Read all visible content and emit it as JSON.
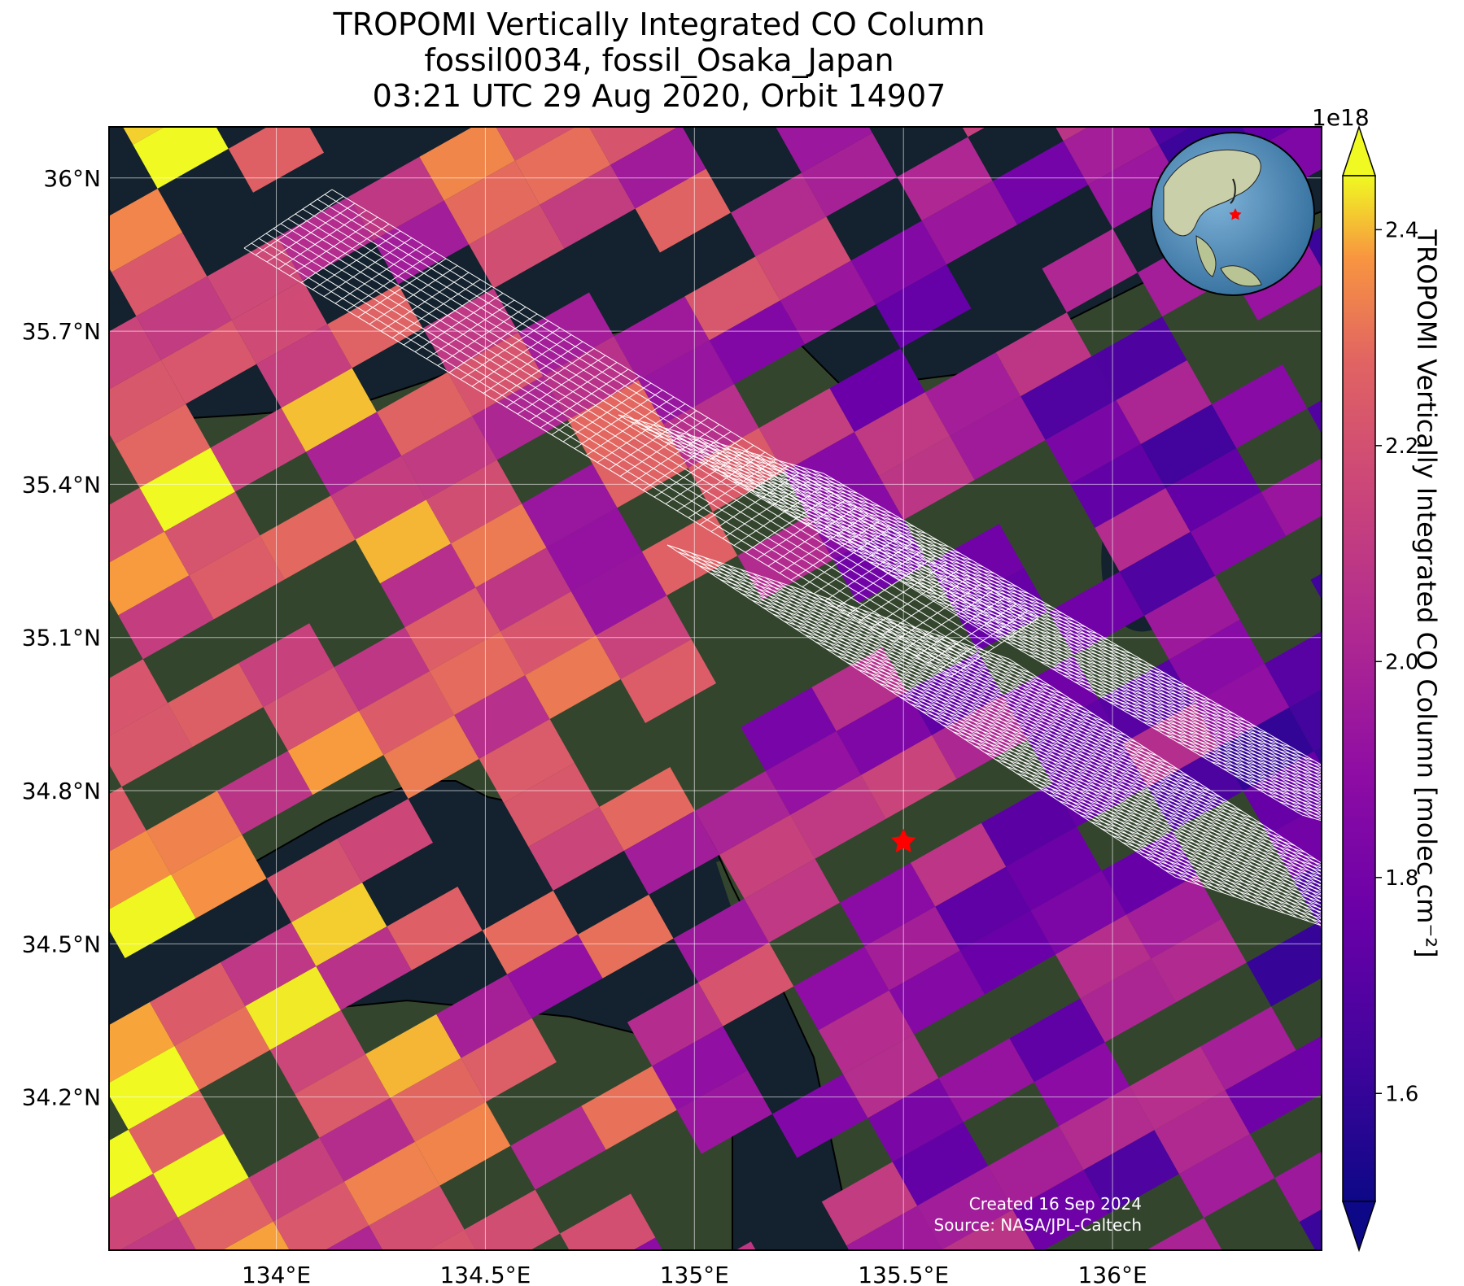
{
  "title": {
    "line1": "TROPOMI Vertically Integrated CO Column",
    "line2": "fossil0034, fossil_Osaka_Japan",
    "line3": "03:21 UTC 29 Aug 2020, Orbit 14907"
  },
  "map": {
    "lon_range": [
      133.6,
      136.5
    ],
    "lat_range": [
      33.9,
      36.1
    ],
    "lat_ticks": [
      {
        "value": 36.0,
        "label": "36°N"
      },
      {
        "value": 35.7,
        "label": "35.7°N"
      },
      {
        "value": 35.4,
        "label": "35.4°N"
      },
      {
        "value": 35.1,
        "label": "35.1°N"
      },
      {
        "value": 34.8,
        "label": "34.8°N"
      },
      {
        "value": 34.5,
        "label": "34.5°N"
      },
      {
        "value": 34.2,
        "label": "34.2°N"
      }
    ],
    "lon_ticks": [
      {
        "value": 134.0,
        "label": "134°E"
      },
      {
        "value": 134.5,
        "label": "134.5°E"
      },
      {
        "value": 135.0,
        "label": "135°E"
      },
      {
        "value": 135.5,
        "label": "135.5°E"
      },
      {
        "value": 136.0,
        "label": "136°E"
      }
    ],
    "target": {
      "lon": 135.5,
      "lat": 34.7,
      "marker": "red-star-icon",
      "color": "#ff0000"
    },
    "background_colors": {
      "sea": "#13222e",
      "land": "#34452e"
    }
  },
  "colorbar": {
    "label": "TROPOMI Vertically Integrated CO Column [molec cm⁻²]",
    "exponent": "1e18",
    "range": [
      1.5,
      2.45
    ],
    "colormap": "plasma",
    "ticks": [
      {
        "value": 1.6,
        "label": "1.6"
      },
      {
        "value": 1.8,
        "label": "1.8"
      },
      {
        "value": 2.0,
        "label": "2.0"
      },
      {
        "value": 2.2,
        "label": "2.2"
      },
      {
        "value": 2.4,
        "label": "2.4"
      }
    ]
  },
  "credits": {
    "created": "Created 16 Sep 2024",
    "source": "Source: NASA/JPL-Caltech"
  },
  "inset": {
    "icon": "globe-icon",
    "marker": "red-star-icon"
  }
}
